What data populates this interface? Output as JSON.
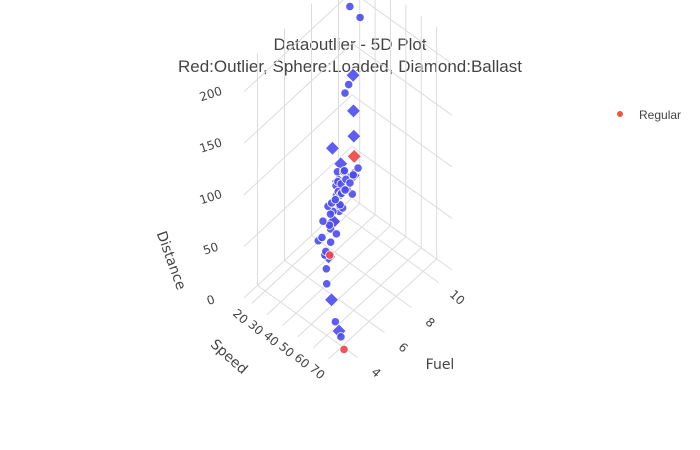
{
  "chart_data": {
    "type": "scatter",
    "title": "Dataoutlier - 5D Plot",
    "subtitle": "Red:Outlier, Sphere:Loaded, Diamond:Ballast",
    "legend": {
      "placement": "top-right",
      "entries": [
        {
          "name": "Regular",
          "color": "#ef553b"
        }
      ]
    },
    "axes": {
      "x": {
        "title": "Fuel",
        "ticks": [
          "4",
          "6",
          "8",
          "10"
        ],
        "range": [
          3,
          11
        ]
      },
      "y": {
        "title": "Speed",
        "ticks": [
          "20",
          "30",
          "40",
          "50",
          "60",
          "70"
        ],
        "range": [
          15,
          80
        ]
      },
      "z": {
        "title": "Distance",
        "ticks": [
          "0",
          "50",
          "100",
          "150",
          "200"
        ],
        "range": [
          0,
          225
        ]
      }
    },
    "grid": true,
    "colors": {
      "regular": "#4b4bf0",
      "outlier": "#ef4444",
      "text": "#444444",
      "grid": "#dcdcdc"
    },
    "points": [
      {
        "fuel": 10.5,
        "speed": 18,
        "distance": 195,
        "shape": "circle",
        "outlier": false
      },
      {
        "fuel": 10.8,
        "speed": 22,
        "distance": 185,
        "shape": "circle",
        "outlier": false
      },
      {
        "fuel": 9.6,
        "speed": 28,
        "distance": 150,
        "shape": "diamond",
        "outlier": false
      },
      {
        "fuel": 9.5,
        "speed": 26,
        "distance": 140,
        "shape": "circle",
        "outlier": false
      },
      {
        "fuel": 9.0,
        "speed": 28,
        "distance": 140,
        "shape": "circle",
        "outlier": false
      },
      {
        "fuel": 9.4,
        "speed": 30,
        "distance": 120,
        "shape": "diamond",
        "outlier": false
      },
      {
        "fuel": 9.2,
        "speed": 32,
        "distance": 100,
        "shape": "diamond",
        "outlier": false
      },
      {
        "fuel": 9.0,
        "speed": 34,
        "distance": 85,
        "shape": "diamond",
        "outlier": true
      },
      {
        "fuel": 8.8,
        "speed": 35,
        "distance": 70,
        "shape": "diamond",
        "outlier": false
      },
      {
        "fuel": 8.0,
        "speed": 34,
        "distance": 90,
        "shape": "diamond",
        "outlier": false
      },
      {
        "fuel": 7.6,
        "speed": 36,
        "distance": 80,
        "shape": "diamond",
        "outlier": false
      },
      {
        "fuel": 7.5,
        "speed": 33,
        "distance": 110,
        "shape": "diamond",
        "outlier": false
      },
      {
        "fuel": 7.2,
        "speed": 40,
        "distance": 60,
        "shape": "circle",
        "outlier": false
      },
      {
        "fuel": 6.5,
        "speed": 42,
        "distance": 60,
        "shape": "diamond",
        "outlier": true
      },
      {
        "fuel": 6.8,
        "speed": 40,
        "distance": 55,
        "shape": "diamond",
        "outlier": false
      },
      {
        "fuel": 6.0,
        "speed": 45,
        "distance": 50,
        "shape": "circle",
        "outlier": false
      },
      {
        "fuel": 5.5,
        "speed": 48,
        "distance": 45,
        "shape": "diamond",
        "outlier": false
      },
      {
        "fuel": 5.0,
        "speed": 50,
        "distance": 55,
        "shape": "circle",
        "outlier": false
      },
      {
        "fuel": 4.5,
        "speed": 55,
        "distance": 70,
        "shape": "circle",
        "outlier": false
      },
      {
        "fuel": 4.2,
        "speed": 58,
        "distance": 60,
        "shape": "circle",
        "outlier": false
      },
      {
        "fuel": 4.0,
        "speed": 62,
        "distance": 80,
        "shape": "circle",
        "outlier": true
      },
      {
        "fuel": 4.0,
        "speed": 60,
        "distance": 50,
        "shape": "circle",
        "outlier": false
      },
      {
        "fuel": 3.9,
        "speed": 64,
        "distance": 40,
        "shape": "diamond",
        "outlier": false
      },
      {
        "fuel": 3.5,
        "speed": 70,
        "distance": 30,
        "shape": "circle",
        "outlier": false
      },
      {
        "fuel": 3.2,
        "speed": 75,
        "distance": 30,
        "shape": "diamond",
        "outlier": false
      },
      {
        "fuel": 3.0,
        "speed": 78,
        "distance": 30,
        "shape": "circle",
        "outlier": false
      },
      {
        "fuel": 3.0,
        "speed": 80,
        "distance": 20,
        "shape": "circle",
        "outlier": true
      },
      {
        "fuel": 5.2,
        "speed": 52,
        "distance": 80,
        "shape": "circle",
        "outlier": false
      },
      {
        "fuel": 5.6,
        "speed": 50,
        "distance": 90,
        "shape": "circle",
        "outlier": false
      },
      {
        "fuel": 6.2,
        "speed": 47,
        "distance": 95,
        "shape": "circle",
        "outlier": false
      },
      {
        "fuel": 6.4,
        "speed": 45,
        "distance": 100,
        "shape": "circle",
        "outlier": false
      },
      {
        "fuel": 6.6,
        "speed": 44,
        "distance": 80,
        "shape": "circle",
        "outlier": false
      },
      {
        "fuel": 6.9,
        "speed": 42,
        "distance": 85,
        "shape": "circle",
        "outlier": false
      },
      {
        "fuel": 7.1,
        "speed": 40,
        "distance": 90,
        "shape": "circle",
        "outlier": false
      },
      {
        "fuel": 7.3,
        "speed": 38,
        "distance": 95,
        "shape": "circle",
        "outlier": false
      },
      {
        "fuel": 7.5,
        "speed": 38,
        "distance": 70,
        "shape": "circle",
        "outlier": false
      },
      {
        "fuel": 7.8,
        "speed": 36,
        "distance": 75,
        "shape": "circle",
        "outlier": false
      },
      {
        "fuel": 8.2,
        "speed": 34,
        "distance": 80,
        "shape": "circle",
        "outlier": false
      },
      {
        "fuel": 8.5,
        "speed": 32,
        "distance": 75,
        "shape": "circle",
        "outlier": false
      },
      {
        "fuel": 8.4,
        "speed": 38,
        "distance": 60,
        "shape": "circle",
        "outlier": false
      },
      {
        "fuel": 5.8,
        "speed": 46,
        "distance": 70,
        "shape": "circle",
        "outlier": false
      },
      {
        "fuel": 6.1,
        "speed": 44,
        "distance": 75,
        "shape": "circle",
        "outlier": false
      },
      {
        "fuel": 6.3,
        "speed": 48,
        "distance": 85,
        "shape": "circle",
        "outlier": false
      },
      {
        "fuel": 6.7,
        "speed": 46,
        "distance": 90,
        "shape": "circle",
        "outlier": false
      },
      {
        "fuel": 7.0,
        "speed": 44,
        "distance": 70,
        "shape": "circle",
        "outlier": false
      },
      {
        "fuel": 7.4,
        "speed": 42,
        "distance": 80,
        "shape": "circle",
        "outlier": false
      },
      {
        "fuel": 7.7,
        "speed": 40,
        "distance": 85,
        "shape": "circle",
        "outlier": false
      },
      {
        "fuel": 8.0,
        "speed": 38,
        "distance": 70,
        "shape": "circle",
        "outlier": false
      },
      {
        "fuel": 5.4,
        "speed": 54,
        "distance": 75,
        "shape": "circle",
        "outlier": false
      },
      {
        "fuel": 5.9,
        "speed": 52,
        "distance": 95,
        "shape": "circle",
        "outlier": false
      },
      {
        "fuel": 6.5,
        "speed": 50,
        "distance": 100,
        "shape": "circle",
        "outlier": false
      },
      {
        "fuel": 7.2,
        "speed": 47,
        "distance": 95,
        "shape": "circle",
        "outlier": false
      },
      {
        "fuel": 7.9,
        "speed": 43,
        "distance": 90,
        "shape": "circle",
        "outlier": false
      },
      {
        "fuel": 8.6,
        "speed": 40,
        "distance": 85,
        "shape": "circle",
        "outlier": false
      },
      {
        "fuel": 6.0,
        "speed": 40,
        "distance": 65,
        "shape": "circle",
        "outlier": false
      },
      {
        "fuel": 6.6,
        "speed": 38,
        "distance": 70,
        "shape": "circle",
        "outlier": false
      },
      {
        "fuel": 7.1,
        "speed": 36,
        "distance": 65,
        "shape": "circle",
        "outlier": false
      },
      {
        "fuel": 7.6,
        "speed": 34,
        "distance": 60,
        "shape": "circle",
        "outlier": false
      },
      {
        "fuel": 5.2,
        "speed": 44,
        "distance": 60,
        "shape": "circle",
        "outlier": false
      },
      {
        "fuel": 5.7,
        "speed": 42,
        "distance": 55,
        "shape": "circle",
        "outlier": false
      }
    ]
  }
}
